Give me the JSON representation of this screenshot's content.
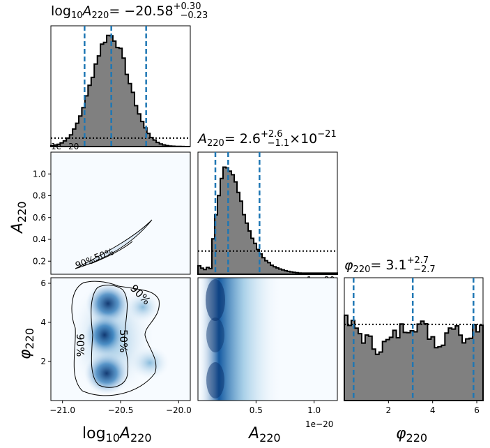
{
  "chart_data": {
    "type": "corner",
    "parameters": [
      {
        "key": "log10A220",
        "axis_label": "log10A220",
        "title": "log10A220 = −20.58 +0.30 −0.23",
        "title_main": "= −20.58",
        "err_plus": "+0.30",
        "err_minus": "−0.23",
        "range": [
          -21.1,
          -19.9
        ],
        "ticks": [
          -21.0,
          -20.5,
          -20.0
        ],
        "tick_labels": [
          "−21.0",
          "−20.5",
          "−20.0"
        ],
        "offset_text": "1e−20",
        "quantiles": [
          -20.81,
          -20.58,
          -20.28
        ],
        "hist_center": -20.59,
        "hist_sigma": 0.16,
        "prior_level": 0.07
      },
      {
        "key": "A220",
        "axis_label": "A220",
        "title": "A220 = 2.6 +2.6 −1.1 × 10^−21",
        "title_main": "= 2.6",
        "err_plus": "+2.6",
        "err_minus": "−1.1",
        "title_suffix": "×10",
        "title_exp": "−21",
        "range": [
          0.0,
          1.2
        ],
        "ticks": [
          0.5,
          1.0
        ],
        "tick_labels": [
          "0.5",
          "1.0"
        ],
        "y_ticks": [
          0.2,
          0.4,
          0.6,
          0.8,
          1.0
        ],
        "y_tick_labels": [
          "0.2",
          "0.4",
          "0.6",
          "0.8",
          "1.0"
        ],
        "y_range": [
          0.08,
          1.2
        ],
        "offset_text": "1e−20",
        "quantiles": [
          0.15,
          0.26,
          0.53
        ],
        "prior_level": 0.19
      },
      {
        "key": "phi220",
        "axis_label": "φ220",
        "title": "φ220 = 3.1 +2.7 −2.7",
        "title_main": "= 3.1",
        "err_plus": "+2.7",
        "err_minus": "−2.7",
        "range": [
          0.0,
          6.283
        ],
        "ticks": [
          2,
          4,
          6
        ],
        "tick_labels": [
          "2",
          "4",
          "6"
        ],
        "quantiles": [
          0.42,
          3.1,
          5.85
        ],
        "prior_level": 0.62
      }
    ],
    "contour_levels": [
      "50%",
      "90%"
    ],
    "line_styles": {
      "histogram": "solid black step, gray fill",
      "quantiles": "dashed",
      "prior": "dotted black"
    },
    "colors": {
      "hist_fill": "#808080",
      "quantile": "#1f77b4",
      "density_low": "#f7fbff",
      "density_high": "#08306b"
    }
  }
}
